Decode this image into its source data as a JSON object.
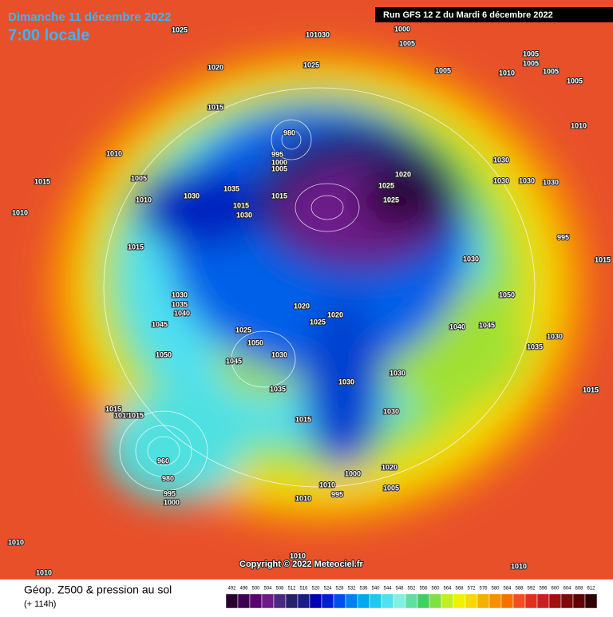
{
  "header": {
    "date": "Dimanche 11 décembre 2022",
    "time": "7:00 locale",
    "run": "Run GFS 12 Z du Mardi 6 décembre 2022"
  },
  "footer": {
    "title": "Géop. Z500 & pression au sol",
    "lead": "(+ 114h)",
    "copyright": "Copyright © 2022 Meteociel.fr"
  },
  "legend": {
    "values": [
      "492",
      "496",
      "500",
      "504",
      "508",
      "512",
      "516",
      "520",
      "524",
      "528",
      "532",
      "536",
      "540",
      "544",
      "548",
      "552",
      "556",
      "560",
      "564",
      "568",
      "572",
      "576",
      "580",
      "584",
      "588",
      "592",
      "596",
      "600",
      "604",
      "608",
      "612"
    ],
    "colors": [
      "#2a0030",
      "#3d0050",
      "#5a0070",
      "#6e1a8a",
      "#4a2a80",
      "#28206a",
      "#1a1a8a",
      "#0000b0",
      "#0020d0",
      "#0050e8",
      "#0080f0",
      "#00a8f0",
      "#20c8f0",
      "#50e0f0",
      "#80f0e0",
      "#60e0a0",
      "#40d060",
      "#80e040",
      "#c0f020",
      "#f0f000",
      "#f8d800",
      "#f8b000",
      "#f89000",
      "#f87000",
      "#f05020",
      "#e03020",
      "#c82020",
      "#a01010",
      "#800808",
      "#600000",
      "#300000"
    ]
  },
  "map": {
    "pressure_labels": [
      "1025",
      "101030",
      "1000",
      "1005",
      "1005",
      "1005",
      "1005",
      "1020",
      "1025",
      "1005",
      "1010",
      "1005",
      "1015",
      "980",
      "995",
      "1000",
      "1005",
      "1010",
      "1010",
      "1015",
      "1020",
      "1025",
      "1025",
      "1030",
      "1030",
      "1030",
      "1030",
      "1005",
      "1015",
      "1010",
      "1030",
      "1035",
      "1015",
      "1030",
      "995",
      "1010",
      "1015",
      "1030",
      "1050",
      "1030",
      "1035",
      "1040",
      "1045",
      "1025",
      "1050",
      "1045",
      "1050",
      "1030",
      "1035",
      "1020",
      "1025",
      "1020",
      "1030",
      "1040",
      "1045",
      "1035",
      "1030",
      "1015",
      "1015",
      "1030",
      "1020",
      "1015",
      "1010",
      "995",
      "1000",
      "1005",
      "1010",
      "960",
      "980",
      "995",
      "1000",
      "1015",
      "1015",
      "1010",
      "1010",
      "1010",
      "1010",
      "1015",
      "1030"
    ]
  }
}
